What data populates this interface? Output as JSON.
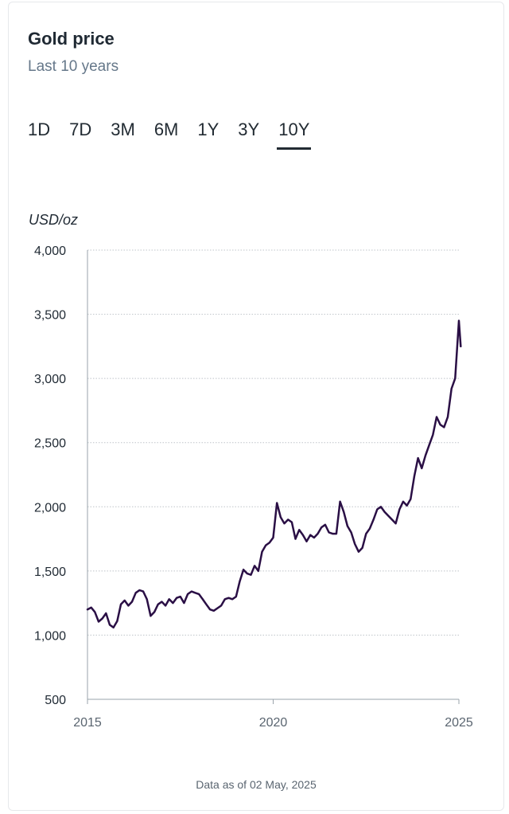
{
  "header": {
    "title": "Gold price",
    "subtitle": "Last 10 years"
  },
  "tabs": [
    {
      "label": "1D"
    },
    {
      "label": "7D"
    },
    {
      "label": "3M"
    },
    {
      "label": "6M"
    },
    {
      "label": "1Y"
    },
    {
      "label": "3Y"
    },
    {
      "label": "10Y"
    }
  ],
  "active_tab": "10Y",
  "footer": "Data as of 02 May, 2025",
  "colors": {
    "line": "#2a0f45",
    "grid": "#bfc4c9",
    "axis": "#5a6570"
  },
  "chart_data": {
    "type": "line",
    "ylabel": "USD/oz",
    "ylim": [
      500,
      4000
    ],
    "yticks": [
      500,
      1000,
      1500,
      2000,
      2500,
      3000,
      3500,
      4000
    ],
    "ytick_labels": [
      "500",
      "1,000",
      "1,500",
      "2,000",
      "2,500",
      "3,000",
      "3,500",
      "4,000"
    ],
    "xlim": [
      2015.0,
      2025.0
    ],
    "xticks": [
      2015,
      2020,
      2025
    ],
    "xtick_labels": [
      "2015",
      "2020",
      "2025"
    ],
    "grid": true,
    "series": [
      {
        "x": [
          2015.0,
          2015.1,
          2015.2,
          2015.3,
          2015.4,
          2015.5,
          2015.6,
          2015.7,
          2015.8,
          2015.9,
          2016.0,
          2016.1,
          2016.2,
          2016.3,
          2016.4,
          2016.5,
          2016.6,
          2016.7,
          2016.8,
          2016.9,
          2017.0,
          2017.1,
          2017.2,
          2017.3,
          2017.4,
          2017.5,
          2017.6,
          2017.7,
          2017.8,
          2017.9,
          2018.0,
          2018.1,
          2018.2,
          2018.3,
          2018.4,
          2018.5,
          2018.6,
          2018.7,
          2018.8,
          2018.9,
          2019.0,
          2019.1,
          2019.2,
          2019.3,
          2019.4,
          2019.5,
          2019.6,
          2019.7,
          2019.8,
          2019.9,
          2020.0,
          2020.1,
          2020.2,
          2020.3,
          2020.4,
          2020.5,
          2020.6,
          2020.7,
          2020.8,
          2020.9,
          2021.0,
          2021.1,
          2021.2,
          2021.3,
          2021.4,
          2021.5,
          2021.6,
          2021.7,
          2021.8,
          2021.9,
          2022.0,
          2022.1,
          2022.2,
          2022.3,
          2022.4,
          2022.5,
          2022.6,
          2022.7,
          2022.8,
          2022.9,
          2023.0,
          2023.1,
          2023.2,
          2023.3,
          2023.4,
          2023.5,
          2023.6,
          2023.7,
          2023.8,
          2023.9,
          2024.0,
          2024.1,
          2024.2,
          2024.3,
          2024.4,
          2024.5,
          2024.6,
          2024.7,
          2024.8,
          2024.9,
          2025.0,
          2025.05
        ],
        "y": [
          1200,
          1215,
          1180,
          1105,
          1130,
          1170,
          1080,
          1060,
          1110,
          1240,
          1270,
          1230,
          1260,
          1330,
          1350,
          1340,
          1280,
          1150,
          1180,
          1240,
          1260,
          1230,
          1280,
          1250,
          1290,
          1300,
          1250,
          1320,
          1340,
          1330,
          1320,
          1280,
          1240,
          1200,
          1190,
          1210,
          1230,
          1280,
          1290,
          1280,
          1300,
          1420,
          1510,
          1480,
          1470,
          1540,
          1500,
          1650,
          1700,
          1720,
          1760,
          2030,
          1920,
          1870,
          1900,
          1880,
          1750,
          1820,
          1780,
          1730,
          1780,
          1760,
          1790,
          1840,
          1860,
          1800,
          1790,
          1790,
          2040,
          1960,
          1850,
          1800,
          1710,
          1650,
          1680,
          1790,
          1830,
          1900,
          1980,
          2000,
          1960,
          1930,
          1900,
          1870,
          1980,
          2040,
          2010,
          2060,
          2240,
          2380,
          2300,
          2400,
          2480,
          2560,
          2700,
          2640,
          2620,
          2700,
          2920,
          3000,
          3450,
          3250
        ]
      }
    ]
  }
}
